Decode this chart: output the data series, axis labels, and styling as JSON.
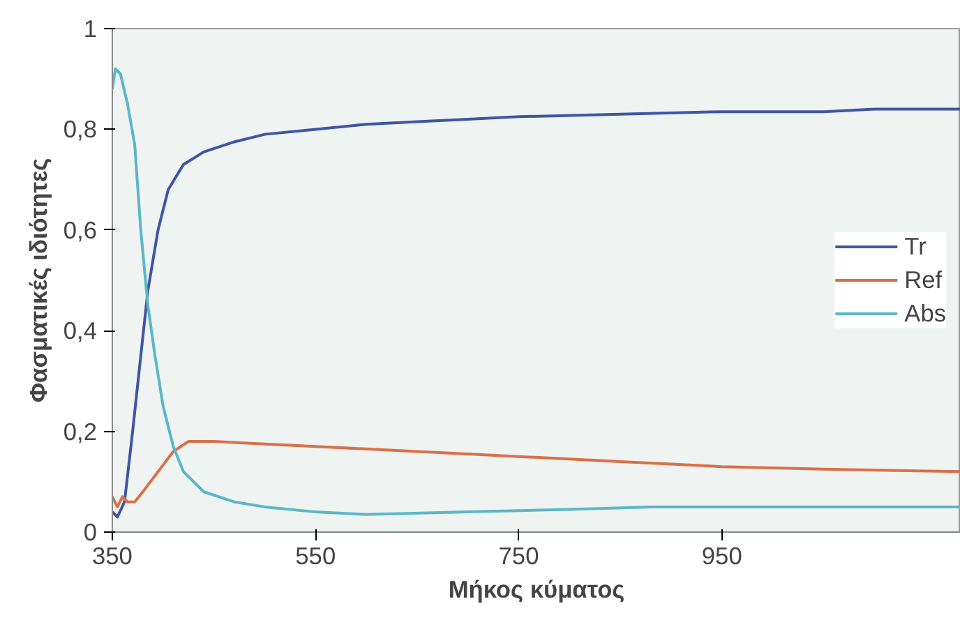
{
  "chart_data": {
    "type": "line",
    "xlabel": "Μήκος κύματος",
    "ylabel": "Φασματικές ιδιότητες",
    "xlim": [
      350,
      1185
    ],
    "xticks": [
      350,
      550,
      750,
      950
    ],
    "ylim": [
      0,
      1
    ],
    "yticks": [
      0,
      {
        "value": 0.2,
        "label": "0,2"
      },
      {
        "value": 0.4,
        "label": "0,4"
      },
      {
        "value": 0.6,
        "label": "0,6"
      },
      {
        "value": 0.8,
        "label": "0,8"
      },
      1
    ],
    "grid": false,
    "legend": "right",
    "marker": "none",
    "line_style": "solid",
    "series": [
      {
        "name": "Tr",
        "color": "#3f55a5",
        "x": [
          350,
          355,
          362,
          370,
          378,
          385,
          395,
          405,
          420,
          440,
          470,
          500,
          550,
          600,
          650,
          700,
          750,
          850,
          950,
          1050,
          1100,
          1185
        ],
        "values": [
          0.04,
          0.03,
          0.06,
          0.2,
          0.35,
          0.48,
          0.6,
          0.68,
          0.73,
          0.755,
          0.775,
          0.79,
          0.8,
          0.81,
          0.815,
          0.82,
          0.825,
          0.83,
          0.835,
          0.835,
          0.84,
          0.84
        ]
      },
      {
        "name": "Ref",
        "color": "#d9704a",
        "x": [
          350,
          355,
          360,
          365,
          372,
          380,
          395,
          410,
          425,
          450,
          500,
          550,
          600,
          650,
          700,
          750,
          800,
          850,
          900,
          950,
          1050,
          1185
        ],
        "values": [
          0.07,
          0.05,
          0.07,
          0.06,
          0.06,
          0.08,
          0.12,
          0.16,
          0.18,
          0.18,
          0.175,
          0.17,
          0.165,
          0.16,
          0.155,
          0.15,
          0.145,
          0.14,
          0.135,
          0.13,
          0.125,
          0.12
        ]
      },
      {
        "name": "Abs",
        "color": "#5ab7c7",
        "x": [
          350,
          353,
          358,
          365,
          372,
          378,
          385,
          392,
          400,
          410,
          420,
          440,
          470,
          500,
          550,
          600,
          700,
          800,
          880,
          950,
          1050,
          1185
        ],
        "values": [
          0.88,
          0.92,
          0.91,
          0.85,
          0.77,
          0.6,
          0.45,
          0.35,
          0.25,
          0.17,
          0.12,
          0.08,
          0.06,
          0.05,
          0.04,
          0.035,
          0.04,
          0.045,
          0.05,
          0.05,
          0.05,
          0.05
        ]
      }
    ]
  }
}
